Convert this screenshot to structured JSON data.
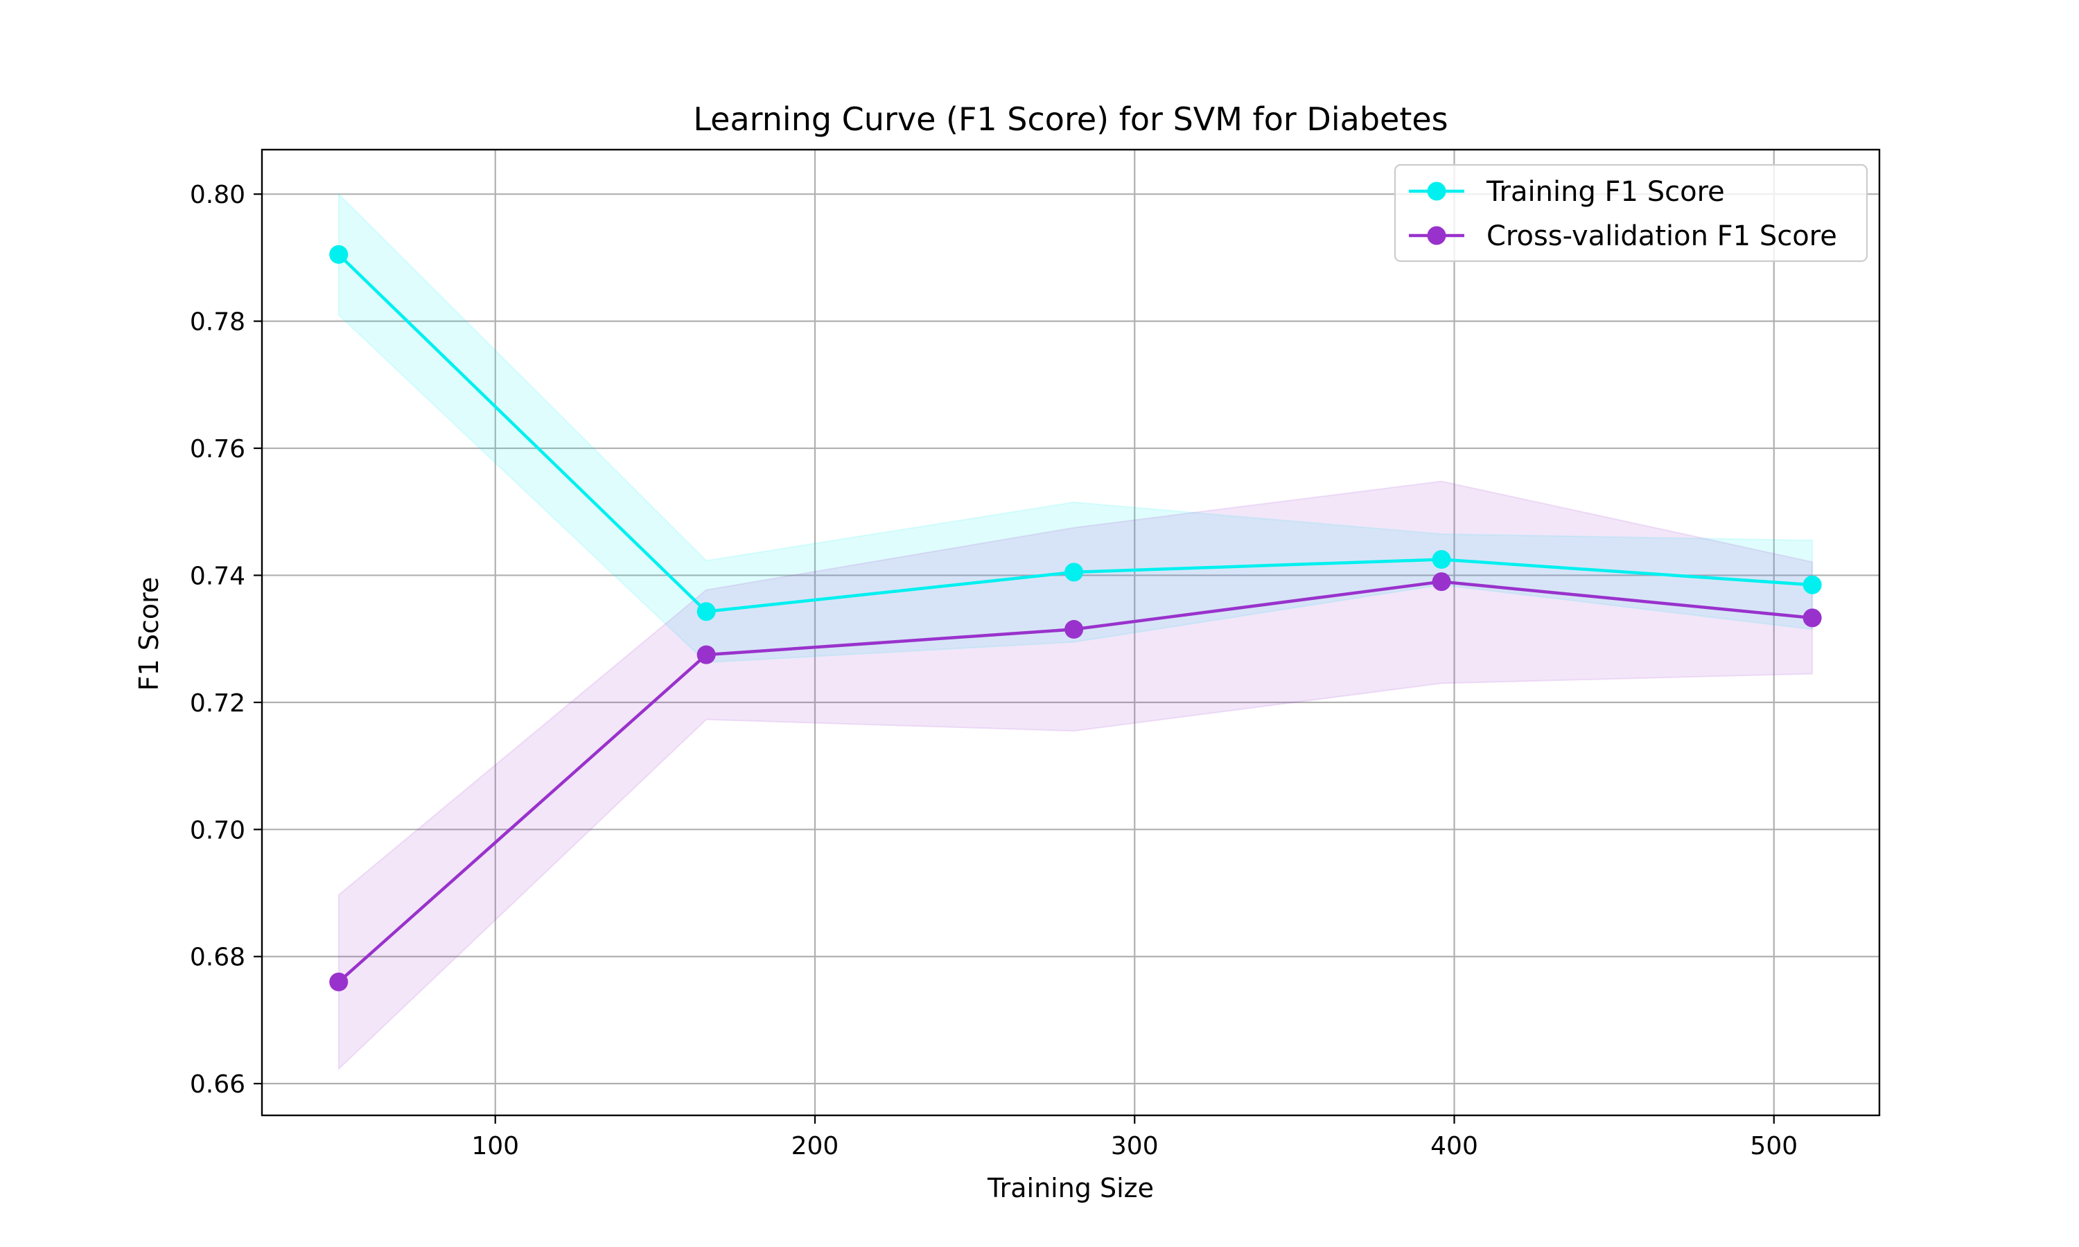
{
  "chart_data": {
    "type": "line",
    "title": "Learning Curve (F1 Score) for SVM for Diabetes",
    "xlabel": "Training Size",
    "ylabel": "F1 Score",
    "xlim": [
      27,
      533
    ],
    "ylim": [
      0.655,
      0.807
    ],
    "xticks": [
      100,
      200,
      300,
      400,
      500
    ],
    "yticks": [
      0.66,
      0.68,
      0.7,
      0.72,
      0.74,
      0.76,
      0.78,
      0.8
    ],
    "grid": true,
    "legend_position": "top-right",
    "x": [
      51,
      166,
      281,
      396,
      512
    ],
    "series": [
      {
        "name": "Training F1 Score",
        "color": "#00f0f0",
        "values": [
          0.7905,
          0.7343,
          0.7405,
          0.7425,
          0.7385
        ],
        "band_lower": [
          0.781,
          0.7263,
          0.7295,
          0.7385,
          0.7315
        ],
        "band_upper": [
          0.8,
          0.7423,
          0.7515,
          0.7465,
          0.7455
        ]
      },
      {
        "name": "Cross-validation F1 Score",
        "color": "#9932cc",
        "values": [
          0.676,
          0.7275,
          0.7315,
          0.739,
          0.7333
        ],
        "band_lower": [
          0.6623,
          0.7173,
          0.7155,
          0.723,
          0.7245
        ],
        "band_upper": [
          0.6897,
          0.7377,
          0.7475,
          0.7548,
          0.7421
        ]
      }
    ]
  }
}
